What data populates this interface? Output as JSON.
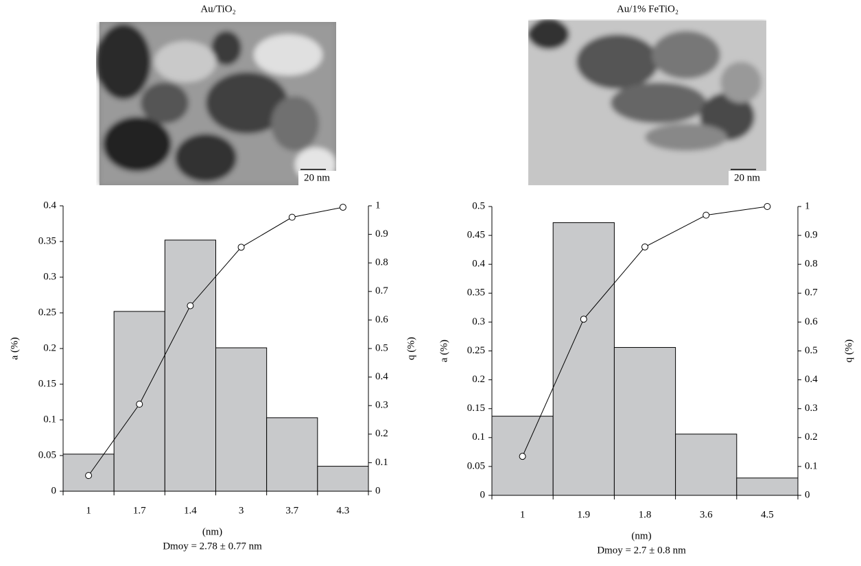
{
  "chart_data": [
    {
      "type": "bar",
      "title": "Au/TiO₂",
      "scale_bar": "20 nm",
      "categories": [
        "1",
        "1.7",
        "1.4",
        "3",
        "3.7",
        "4.3"
      ],
      "series": [
        {
          "type": "bar",
          "color": "#c8c9cb",
          "values": [
            0.052,
            0.252,
            0.352,
            0.201,
            0.103,
            0.035
          ]
        },
        {
          "type": "line",
          "axis": "y2",
          "color": "#000000",
          "values": [
            0.055,
            0.305,
            0.65,
            0.855,
            0.96,
            0.995
          ]
        }
      ],
      "ylim": [
        0,
        0.4
      ],
      "yticks": [
        0,
        0.05,
        0.1,
        0.15,
        0.2,
        0.25,
        0.3,
        0.35,
        0.4
      ],
      "y2lim": [
        0,
        1
      ],
      "y2ticks": [
        0,
        0.1,
        0.2,
        0.3,
        0.4,
        0.5,
        0.6,
        0.7,
        0.8,
        0.9,
        1
      ],
      "y_label": "a (%)",
      "y2_label": "q (%)",
      "x_label": "(nm)",
      "note": "Dmoy = 2.78 ± 0.77 nm"
    },
    {
      "type": "bar",
      "title": "Au/1% FeTiO₂",
      "scale_bar": "20 nm",
      "categories": [
        "1",
        "1.9",
        "1.8",
        "3.6",
        "4.5"
      ],
      "series": [
        {
          "type": "bar",
          "color": "#c8c9cb",
          "values": [
            0.137,
            0.472,
            0.256,
            0.106,
            0.03
          ]
        },
        {
          "type": "line",
          "axis": "y2",
          "color": "#000000",
          "values": [
            0.135,
            0.61,
            0.86,
            0.97,
            1.0
          ]
        }
      ],
      "ylim": [
        0,
        0.5
      ],
      "yticks": [
        0,
        0.05,
        0.1,
        0.15,
        0.2,
        0.25,
        0.3,
        0.35,
        0.4,
        0.45,
        0.5
      ],
      "y2lim": [
        0,
        1
      ],
      "y2ticks": [
        0,
        0.1,
        0.2,
        0.3,
        0.4,
        0.5,
        0.6,
        0.7,
        0.8,
        0.9,
        1
      ],
      "y_label": "a (%)",
      "y2_label": "q (%)",
      "x_label": "(nm)",
      "note": "Dmoy = 2.7 ± 0.8 nm"
    }
  ]
}
